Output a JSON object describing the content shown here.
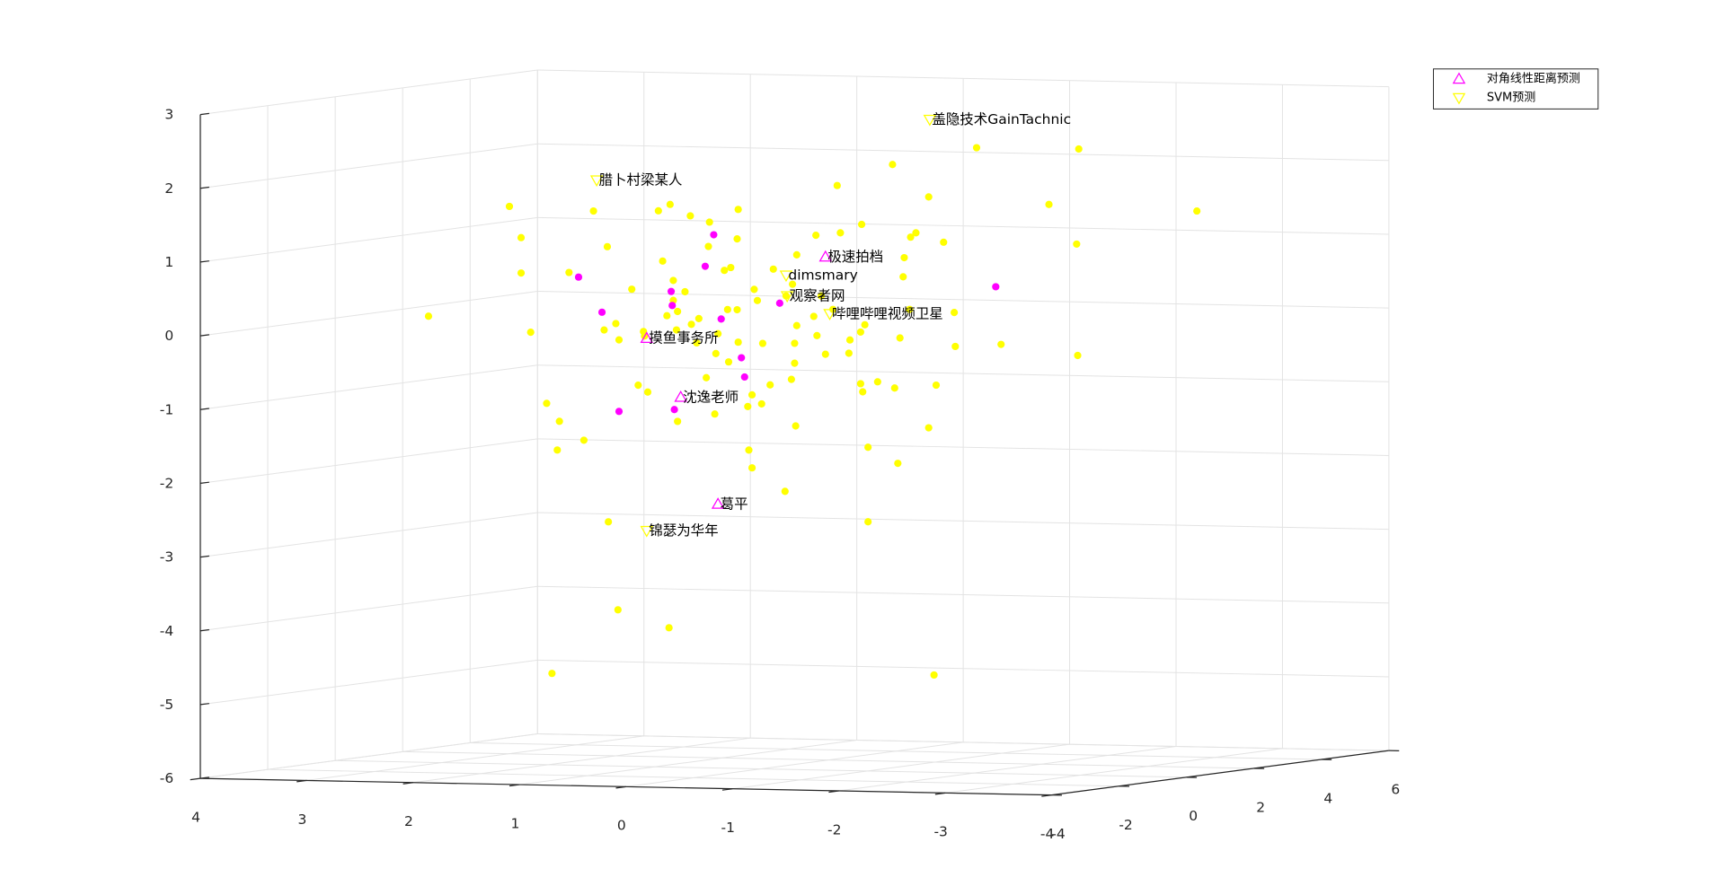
{
  "chart_data": {
    "type": "scatter3d",
    "xlim": [
      -4,
      4
    ],
    "xticks": [
      -4,
      -3,
      -2,
      -1,
      0,
      1,
      2,
      3,
      4
    ],
    "ylim": [
      -4,
      6
    ],
    "yticks": [
      -4,
      -2,
      0,
      2,
      4,
      6
    ],
    "zlim": [
      -6,
      3
    ],
    "zticks": [
      -6,
      -5,
      -4,
      -3,
      -2,
      -1,
      0,
      1,
      2,
      3
    ],
    "grid": true,
    "legend": "northeastoutside",
    "series": [
      {
        "name": "对角线性距离预测",
        "color": "#ff00ff",
        "marker": "^",
        "labels": [
          "极速拍档",
          "摸鱼事务所",
          "沈逸老师",
          "葛平"
        ],
        "x": [
          -0.29,
          1.39,
          1.07,
          0.72
        ],
        "y": [
          1,
          1,
          1,
          1
        ],
        "values": [
          0.89,
          -0.26,
          -1.05,
          -2.49
        ]
      },
      {
        "name": "SVM预测",
        "color": "#ffff00",
        "marker": "v",
        "labels": [
          "盖隐技术GainTachnic",
          "腊卜村梁某人",
          "dimsmary",
          "观察者网",
          "哔哩哔哩视频卫星",
          "锦瑟为华年"
        ],
        "x": [
          -1.27,
          1.86,
          0.08,
          0.07,
          -0.33,
          1.39
        ],
        "y": [
          1,
          1,
          1,
          1,
          1,
          1
        ],
        "values": [
          2.78,
          1.87,
          0.63,
          0.35,
          0.12,
          -2.87
        ]
      },
      {
        "color": "#ffff00",
        "marker": "o",
        "x": [
          3.44,
          2.68,
          2.57,
          2.57,
          2.48,
          2.33,
          2.21,
          2.23,
          1.98,
          2.28,
          1.66,
          1.75,
          1.18,
          1.89,
          1.76,
          2.12,
          1.53,
          1.68,
          1.79,
          1.65,
          1.47,
          1.38,
          1.28,
          1.17,
          0.98,
          0.8,
          0.53,
          0.54,
          0.81,
          1.24,
          1.14,
          0.66,
          0.6,
          1.03,
          1.2,
          1.42,
          1.11,
          0.97,
          0.9,
          0.72,
          0.63,
          0.54,
          0.53,
          0.74,
          0.62,
          1.1,
          0.75,
          0.44,
          0.4,
          0.31,
          0.23,
          0.43,
          0.4,
          0.03,
          -0.01,
          0.09,
          -0.69,
          -1.31,
          -0.69,
          -0.97,
          -0.62,
          -0.64,
          -0.78,
          -0.94,
          -1.33,
          -1.26,
          -1.51,
          -1.5,
          -1.94,
          -2.66,
          -2.65,
          -2.39,
          -2.67,
          -1.71,
          -3.78,
          -0.92,
          -1.26,
          -0.4,
          -0.63,
          -0.43,
          -0.2,
          -0.02,
          0.2,
          0.02,
          -1.03,
          -1.14,
          -1.09,
          -1.4,
          -1.02,
          -1.08,
          -0.99,
          -0.62,
          -0.52,
          -0.29,
          -0.51,
          -0.21,
          0,
          0,
          0.3,
          -0.02,
          -0.18,
          -0.25,
          -0.36,
          0.38,
          0.35,
          0.08,
          1.1,
          1.14,
          1.41,
          0.92,
          0.83,
          -0.66
        ],
        "y": [
          1,
          1,
          1,
          1,
          1,
          1,
          1,
          1,
          1,
          1,
          1,
          1,
          1,
          1,
          1,
          1,
          1,
          1,
          1,
          1,
          1,
          1,
          1,
          1,
          1,
          1,
          1,
          1,
          1,
          1,
          1,
          1,
          1,
          1,
          1,
          1,
          1,
          1,
          1,
          1,
          1,
          1,
          1,
          1,
          1,
          1,
          1,
          1,
          1,
          1,
          1,
          1,
          1,
          1,
          1,
          1,
          1,
          1,
          1,
          1,
          1,
          1,
          1,
          1,
          1,
          1,
          1,
          1,
          1,
          1,
          1,
          1,
          1,
          1,
          1,
          1,
          1,
          1,
          1,
          1,
          1,
          1,
          1,
          1,
          1,
          1,
          1,
          1,
          1,
          1,
          1,
          1,
          1,
          1,
          1,
          1,
          1,
          1,
          1,
          1,
          1,
          1,
          1,
          1,
          1,
          1,
          1,
          1,
          1,
          1,
          1,
          1
        ],
        "values": [
          -0.02,
          1.49,
          1.07,
          0.59,
          -0.21,
          -1.17,
          -1.41,
          -1.8,
          -1.66,
          -4.83,
          -3.95,
          -2.76,
          -4.18,
          1.45,
          0.97,
          0.61,
          0.4,
          -0.07,
          -0.16,
          -0.29,
          -0.9,
          -0.99,
          1.47,
          1.56,
          1.41,
          1.33,
          1.51,
          1.11,
          1,
          0.79,
          0.53,
          0.68,
          0.72,
          0.38,
          0.05,
          -0.17,
          -0.14,
          -0.06,
          0.02,
          -0.18,
          0.15,
          0.15,
          -0.29,
          -0.45,
          -0.56,
          -1.38,
          -1.27,
          -1.16,
          -1,
          -1.12,
          -0.86,
          -1.75,
          -1.99,
          -0.78,
          -1.41,
          -2.3,
          -2.69,
          -4.75,
          -1.68,
          -1.89,
          -0.82,
          -0.93,
          -0.79,
          -0.87,
          -0.82,
          -1.4,
          -0.29,
          0.17,
          -0.25,
          -0.38,
          1.13,
          1.66,
          2.42,
          2.41,
          1.61,
          2.16,
          1.73,
          1.86,
          1.34,
          1.22,
          1.18,
          0.91,
          0.71,
          0.51,
          0.9,
          1.24,
          1.18,
          1.12,
          0.64,
          0.2,
          -0.19,
          -0.12,
          -0.23,
          -0.43,
          -0.41,
          -0.18,
          -0.56,
          -0.29,
          -0.3,
          -0.05,
          0.08,
          0.36,
          0.18,
          0.43,
          0.28,
          0.35,
          0.11,
          0.26,
          -0.23,
          -0.31,
          -0.78,
          -0.02
        ]
      },
      {
        "color": "#ff00ff",
        "marker": "o",
        "x": [
          0.76,
          0.84,
          1.16,
          1.15,
          2.03,
          1.81,
          0.69,
          0.14,
          0.5,
          0.47,
          1.65,
          1.13,
          -1.89
        ],
        "y": [
          1,
          1,
          1,
          1,
          1,
          1,
          1,
          1,
          1,
          1,
          1,
          1,
          1
        ],
        "values": [
          1.16,
          0.73,
          0.38,
          0.19,
          0.55,
          0.08,
          0.02,
          0.25,
          -0.5,
          -0.76,
          -1.26,
          -1.22,
          0.53
        ]
      }
    ]
  }
}
